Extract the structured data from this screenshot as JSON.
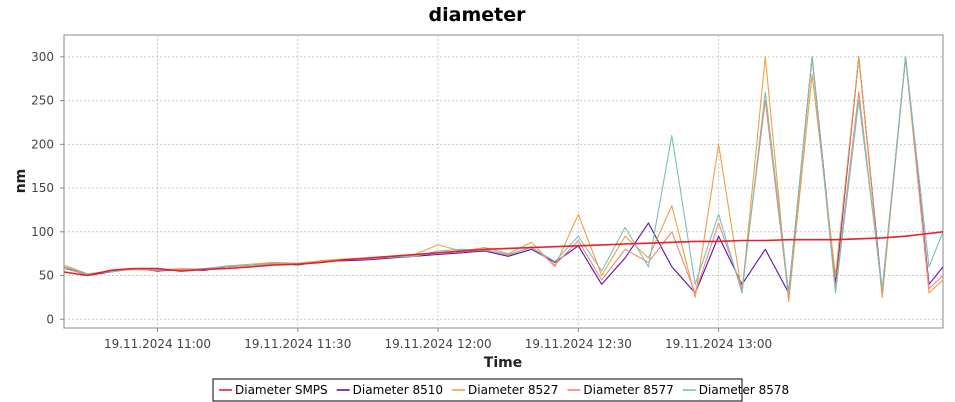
{
  "chart_data": {
    "type": "line",
    "title": "diameter",
    "xlabel": "Time",
    "ylabel": "nm",
    "x_range": [
      "19.11.2024 10:40",
      "19.11.2024 13:48"
    ],
    "ylim": [
      -10,
      325
    ],
    "x_ticks": [
      "19.11.2024 11:00",
      "19.11.2024 11:30",
      "19.11.2024 12:00",
      "19.11.2024 12:30",
      "19.11.2024 13:00"
    ],
    "y_ticks": [
      0,
      50,
      100,
      150,
      200,
      250,
      300
    ],
    "grid": true,
    "legend_position": "bottom-center",
    "series": [
      {
        "name": "Diameter SMPS",
        "color": "#e8202a",
        "time": [
          "10:40",
          "10:45",
          "10:50",
          "10:55",
          "11:00",
          "11:05",
          "11:10",
          "11:15",
          "11:20",
          "11:25",
          "11:30",
          "11:35",
          "11:40",
          "11:45",
          "11:50",
          "11:55",
          "12:00",
          "12:05",
          "12:10",
          "12:15",
          "12:20",
          "12:25",
          "12:30",
          "12:35",
          "12:40",
          "12:45",
          "12:50",
          "12:55",
          "13:00",
          "13:05",
          "13:10",
          "13:15",
          "13:20",
          "13:25",
          "13:30",
          "13:35",
          "13:40",
          "13:45",
          "13:48"
        ],
        "values": [
          54,
          50,
          56,
          58,
          58,
          55,
          57,
          58,
          60,
          62,
          63,
          65,
          68,
          70,
          72,
          74,
          76,
          78,
          80,
          81,
          82,
          83,
          84,
          85,
          86,
          87,
          88,
          89,
          89,
          90,
          90,
          91,
          91,
          91,
          92,
          93,
          95,
          98,
          100
        ]
      },
      {
        "name": "Diameter 8510",
        "color": "#5b0fa8",
        "time": [
          "10:40",
          "10:45",
          "10:50",
          "10:55",
          "11:00",
          "11:05",
          "11:10",
          "11:15",
          "11:20",
          "11:25",
          "11:30",
          "11:35",
          "11:40",
          "11:45",
          "11:50",
          "11:55",
          "12:00",
          "12:05",
          "12:10",
          "12:15",
          "12:20",
          "12:25",
          "12:30",
          "12:35",
          "12:40",
          "12:45",
          "12:50",
          "12:55",
          "13:00",
          "13:05",
          "13:10",
          "13:15",
          "13:20",
          "13:25",
          "13:30",
          "13:35",
          "13:40",
          "13:45",
          "13:48"
        ],
        "values": [
          60,
          50,
          54,
          58,
          55,
          57,
          56,
          60,
          62,
          64,
          62,
          66,
          67,
          68,
          70,
          72,
          74,
          76,
          78,
          72,
          80,
          65,
          84,
          40,
          70,
          110,
          60,
          30,
          95,
          40,
          80,
          30,
          300,
          40,
          300,
          30,
          300,
          40,
          60
        ]
      },
      {
        "name": "Diameter 8527",
        "color": "#f0a040",
        "time": [
          "10:40",
          "10:45",
          "10:50",
          "10:55",
          "11:00",
          "11:05",
          "11:10",
          "11:15",
          "11:20",
          "11:25",
          "11:30",
          "11:35",
          "11:40",
          "11:45",
          "11:50",
          "11:55",
          "12:00",
          "12:05",
          "12:10",
          "12:15",
          "12:20",
          "12:25",
          "12:30",
          "12:35",
          "12:40",
          "12:45",
          "12:50",
          "12:55",
          "13:00",
          "13:05",
          "13:10",
          "13:15",
          "13:20",
          "13:25",
          "13:30",
          "13:35",
          "13:40",
          "13:45",
          "13:48"
        ],
        "values": [
          62,
          52,
          55,
          57,
          56,
          58,
          57,
          61,
          63,
          65,
          64,
          67,
          69,
          70,
          72,
          74,
          85,
          78,
          82,
          75,
          88,
          60,
          120,
          50,
          95,
          70,
          130,
          25,
          200,
          30,
          300,
          20,
          280,
          50,
          300,
          25,
          300,
          30,
          45
        ]
      },
      {
        "name": "Diameter 8577",
        "color": "#f08878",
        "time": [
          "10:40",
          "10:45",
          "10:50",
          "10:55",
          "11:00",
          "11:05",
          "11:10",
          "11:15",
          "11:20",
          "11:25",
          "11:30",
          "11:35",
          "11:40",
          "11:45",
          "11:50",
          "11:55",
          "12:00",
          "12:05",
          "12:10",
          "12:15",
          "12:20",
          "12:25",
          "12:30",
          "12:35",
          "12:40",
          "12:45",
          "12:50",
          "12:55",
          "13:00",
          "13:05",
          "13:10",
          "13:15",
          "13:20",
          "13:25",
          "13:30",
          "13:35",
          "13:40",
          "13:45",
          "13:48"
        ],
        "values": [
          58,
          51,
          55,
          57,
          56,
          57,
          58,
          60,
          62,
          64,
          63,
          66,
          68,
          69,
          71,
          73,
          76,
          77,
          80,
          73,
          83,
          62,
          90,
          45,
          80,
          65,
          100,
          30,
          110,
          35,
          250,
          25,
          300,
          35,
          260,
          30,
          300,
          35,
          50
        ]
      },
      {
        "name": "Diameter 8578",
        "color": "#78c0b8",
        "time": [
          "10:40",
          "10:45",
          "10:50",
          "10:55",
          "11:00",
          "11:05",
          "11:10",
          "11:15",
          "11:20",
          "11:25",
          "11:30",
          "11:35",
          "11:40",
          "11:45",
          "11:50",
          "11:55",
          "12:00",
          "12:05",
          "12:10",
          "12:15",
          "12:20",
          "12:25",
          "12:30",
          "12:35",
          "12:40",
          "12:45",
          "12:50",
          "12:55",
          "13:00",
          "13:05",
          "13:10",
          "13:15",
          "13:20",
          "13:25",
          "13:30",
          "13:35",
          "13:40",
          "13:45",
          "13:48"
        ],
        "values": [
          60,
          52,
          54,
          58,
          57,
          56,
          58,
          61,
          62,
          63,
          64,
          65,
          68,
          70,
          71,
          72,
          78,
          80,
          79,
          74,
          82,
          66,
          95,
          55,
          105,
          60,
          210,
          40,
          120,
          30,
          260,
          30,
          300,
          30,
          250,
          35,
          300,
          60,
          100
        ]
      }
    ]
  }
}
